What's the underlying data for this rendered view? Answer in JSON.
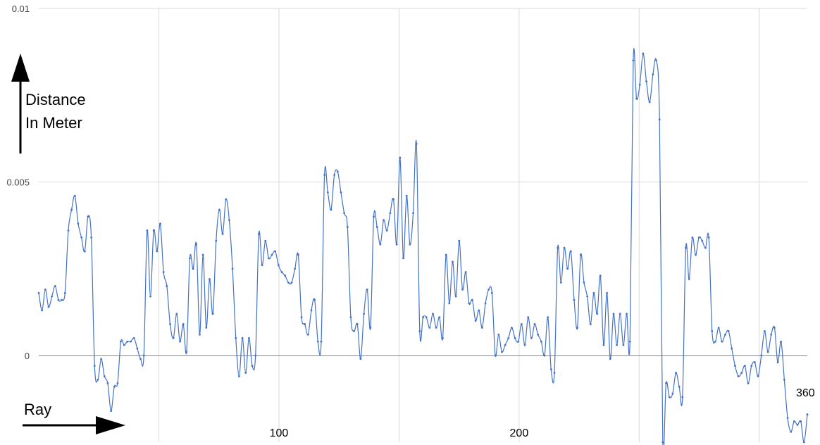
{
  "colors": {
    "series": "#4472c4",
    "grid": "#d9d9d9",
    "zero_line": "#888888",
    "arrow": "#000000"
  },
  "annotations": {
    "y_arrow_label_line1": "Distance",
    "y_arrow_label_line2": "In Meter",
    "x_arrow_label": "Ray",
    "end_label": "360"
  },
  "chart_data": {
    "type": "line",
    "title": "",
    "xlabel": "Ray",
    "ylabel": "Distance In Meter",
    "xlim": [
      0,
      320
    ],
    "ylim": [
      -0.0025,
      0.01
    ],
    "y_ticks": [
      {
        "value": 0.01,
        "label": "0.01"
      },
      {
        "value": 0.005,
        "label": "0.005"
      },
      {
        "value": 0,
        "label": "0"
      }
    ],
    "x_ticks": [
      {
        "value": 100,
        "label": "100"
      },
      {
        "value": 200,
        "label": "200"
      }
    ],
    "x_grid": [
      50,
      100,
      150,
      200,
      250,
      300
    ],
    "y_grid": [
      0.01,
      0.005,
      0
    ],
    "grid": true,
    "legend": "none",
    "series": [
      {
        "name": "",
        "values": [
          0.0018,
          0.0013,
          0.0019,
          0.0014,
          0.0017,
          0.002,
          0.0016,
          0.0016,
          0.0018,
          0.0036,
          0.0042,
          0.0046,
          0.0038,
          0.0034,
          0.003,
          0.004,
          0.0034,
          -0.0003,
          -0.0007,
          -0.0001,
          -0.0006,
          -0.0008,
          -0.0016,
          -0.0009,
          -0.0008,
          0.0004,
          0.0003,
          0.0004,
          0.0004,
          0.0005,
          0.0002,
          -0.0001,
          0.0,
          0.0036,
          0.0017,
          0.0036,
          0.003,
          0.0038,
          0.0024,
          0.002,
          0.0009,
          0.0005,
          0.0012,
          0.0004,
          0.0009,
          0.0001,
          0.0028,
          0.0025,
          0.0032,
          0.0006,
          0.0029,
          0.0008,
          0.0022,
          0.0012,
          0.0033,
          0.0042,
          0.0035,
          0.0045,
          0.0039,
          0.0025,
          0.0005,
          -0.0006,
          0.0005,
          -0.0005,
          0.0005,
          -0.0003,
          0.0,
          0.0035,
          0.0026,
          0.0033,
          0.0028,
          0.0029,
          0.003,
          0.0026,
          0.0024,
          0.0023,
          0.0021,
          0.0021,
          0.0025,
          0.0029,
          0.0011,
          0.0009,
          0.0006,
          0.0013,
          0.0016,
          0.0004,
          0.0004,
          0.0052,
          0.0047,
          0.0042,
          0.0052,
          0.0053,
          0.0047,
          0.0041,
          0.0037,
          0.0011,
          0.0007,
          0.0009,
          -0.0001,
          0.0012,
          0.0019,
          0.0008,
          0.004,
          0.0037,
          0.0032,
          0.0039,
          0.0036,
          0.0041,
          0.0045,
          0.0032,
          0.0057,
          0.0028,
          0.0046,
          0.0032,
          0.0041,
          0.0061,
          0.0007,
          0.0011,
          0.0011,
          0.0008,
          0.0012,
          0.0008,
          0.0011,
          0.0005,
          0.0029,
          0.0015,
          0.0027,
          0.0017,
          0.0033,
          0.0019,
          0.0024,
          0.0015,
          0.0016,
          0.001,
          0.0013,
          0.0008,
          0.0015,
          0.0019,
          0.0018,
          0.0,
          0.0006,
          0.0001,
          0.0003,
          0.0005,
          0.0008,
          0.0005,
          0.0004,
          0.0009,
          0.0003,
          0.0011,
          0.0005,
          0.0009,
          0.0006,
          0.0004,
          0.0,
          0.0011,
          -0.0004,
          -0.0005,
          0.0031,
          0.0021,
          0.0031,
          0.0025,
          0.003,
          0.0016,
          0.0008,
          0.0029,
          0.0021,
          0.0017,
          0.0009,
          0.0018,
          0.0012,
          0.0023,
          0.0003,
          0.0018,
          -0.0001,
          0.0012,
          0.0003,
          0.0012,
          0.0003,
          0.0012,
          0.0004,
          0.0085,
          0.0074,
          0.0078,
          0.0087,
          0.0079,
          0.0073,
          0.0081,
          0.0085,
          0.0068,
          -0.0025,
          -0.0008,
          -0.0012,
          -0.0011,
          -0.0005,
          -0.0009,
          -0.0012,
          0.0031,
          0.0022,
          0.0034,
          0.0029,
          0.0034,
          0.0033,
          0.0031,
          0.0034,
          0.0007,
          0.0004,
          0.0008,
          0.0004,
          0.0006,
          0.0007,
          0.0002,
          -0.0003,
          -0.0006,
          -0.0005,
          -0.0003,
          -0.0008,
          -0.0003,
          -0.0002,
          -0.0006,
          0.0,
          0.0007,
          0.0001,
          0.0006,
          0.0008,
          -0.0002,
          0.0004,
          -0.0007,
          -0.0018,
          -0.0022,
          -0.0019,
          -0.002,
          -0.0019,
          -0.0025,
          -0.0017
        ]
      }
    ]
  }
}
